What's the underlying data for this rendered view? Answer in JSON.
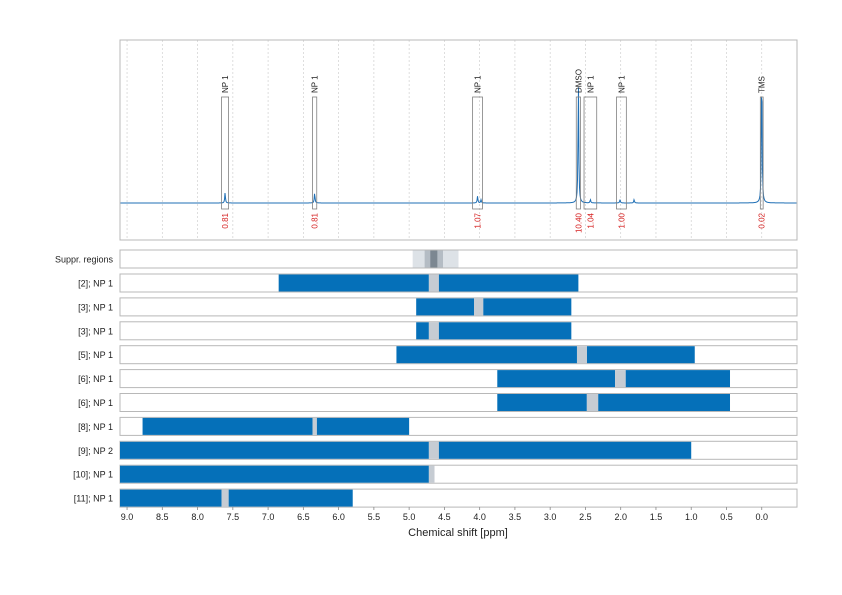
{
  "colors": {
    "spectrum": "#1f6fb5",
    "bar": "#0570b9",
    "gap": "#c6ccd3",
    "suppression_light": "#dde2e7",
    "suppression_mid": "#b4bcc4",
    "suppression_dark": "#7c8791",
    "integral": "#d62020",
    "frame": "#b8b8b8",
    "grid": "#d0d0d0",
    "text": "#222222"
  },
  "chart_data": {
    "type": "nmr-spectrum-with-range-bars",
    "xlabel": "Chemical shift [ppm]",
    "xlim": [
      9.1,
      -0.5
    ],
    "x_ticks": [
      "9.0",
      "8.5",
      "8.0",
      "7.5",
      "7.0",
      "6.5",
      "6.0",
      "5.5",
      "5.0",
      "4.5",
      "4.0",
      "3.5",
      "3.0",
      "2.5",
      "2.0",
      "1.5",
      "1.0",
      "0.5",
      "0.0"
    ],
    "grid": true,
    "spectrum_peaks": [
      {
        "ppm": 7.61,
        "height": 0.06
      },
      {
        "ppm": 6.34,
        "height": 0.06
      },
      {
        "ppm": 4.03,
        "height": 0.04
      },
      {
        "ppm": 3.98,
        "height": 0.02
      },
      {
        "ppm": 2.6,
        "height": 0.73
      },
      {
        "ppm": 2.43,
        "height": 0.02
      },
      {
        "ppm": 2.01,
        "height": 0.02
      },
      {
        "ppm": 1.81,
        "height": 0.02
      },
      {
        "ppm": 0.0,
        "height": 0.82
      }
    ],
    "regions": [
      {
        "label": "NP 1",
        "from": 7.66,
        "to": 7.56,
        "integral": "0.81"
      },
      {
        "label": "NP 1",
        "from": 6.37,
        "to": 6.31,
        "integral": "0.81"
      },
      {
        "label": "NP 1",
        "from": 4.1,
        "to": 3.96,
        "integral": "1.07"
      },
      {
        "label": "DMSO",
        "from": 2.63,
        "to": 2.57,
        "integral": "10.40"
      },
      {
        "label": "NP 1",
        "from": 2.52,
        "to": 2.34,
        "integral": "1.04"
      },
      {
        "label": "NP 1",
        "from": 2.06,
        "to": 1.92,
        "integral": "1.00"
      },
      {
        "label": "TMS",
        "from": 0.02,
        "to": -0.02,
        "integral": "0.02"
      }
    ],
    "suppression": {
      "label": "Suppr. regions",
      "bands": [
        {
          "from": 4.95,
          "to": 4.3,
          "level": "light"
        },
        {
          "from": 4.78,
          "to": 4.52,
          "level": "mid"
        },
        {
          "from": 4.7,
          "to": 4.6,
          "level": "dark"
        }
      ]
    },
    "rows": [
      {
        "label": "[2]; NP 1",
        "segments": [
          [
            6.85,
            4.72
          ],
          [
            4.58,
            2.6
          ]
        ],
        "gaps": [
          [
            4.72,
            4.58
          ]
        ]
      },
      {
        "label": "[3]; NP 1",
        "segments": [
          [
            4.9,
            4.08
          ],
          [
            3.95,
            2.7
          ]
        ],
        "gaps": [
          [
            4.08,
            3.95
          ]
        ]
      },
      {
        "label": "[3]; NP 1",
        "segments": [
          [
            4.9,
            4.72
          ],
          [
            4.58,
            2.7
          ]
        ],
        "gaps": [
          [
            4.72,
            4.58
          ]
        ]
      },
      {
        "label": "[5]; NP 1",
        "segments": [
          [
            5.18,
            2.62
          ],
          [
            2.48,
            0.95
          ]
        ],
        "gaps": [
          [
            2.62,
            2.48
          ]
        ]
      },
      {
        "label": "[6]; NP 1",
        "segments": [
          [
            3.75,
            2.08
          ],
          [
            1.93,
            0.45
          ]
        ],
        "gaps": [
          [
            2.08,
            1.93
          ]
        ]
      },
      {
        "label": "[6]; NP 1",
        "segments": [
          [
            3.75,
            2.48
          ],
          [
            2.32,
            0.45
          ]
        ],
        "gaps": [
          [
            2.48,
            2.32
          ]
        ]
      },
      {
        "label": "[8]; NP 1",
        "segments": [
          [
            8.78,
            6.37
          ],
          [
            6.31,
            5.0
          ]
        ],
        "gaps": [
          [
            6.37,
            6.31
          ]
        ]
      },
      {
        "label": "[9]; NP 2",
        "segments": [
          [
            9.1,
            4.72
          ],
          [
            4.58,
            1.0
          ]
        ],
        "gaps": [
          [
            4.72,
            4.58
          ]
        ]
      },
      {
        "label": "[10]; NP 1",
        "segments": [
          [
            9.1,
            4.72
          ]
        ],
        "gaps": [
          [
            4.72,
            4.64
          ]
        ]
      },
      {
        "label": "[11]; NP 1",
        "segments": [
          [
            9.1,
            7.66
          ],
          [
            7.56,
            5.8
          ]
        ],
        "gaps": [
          [
            7.66,
            7.56
          ]
        ]
      }
    ]
  }
}
